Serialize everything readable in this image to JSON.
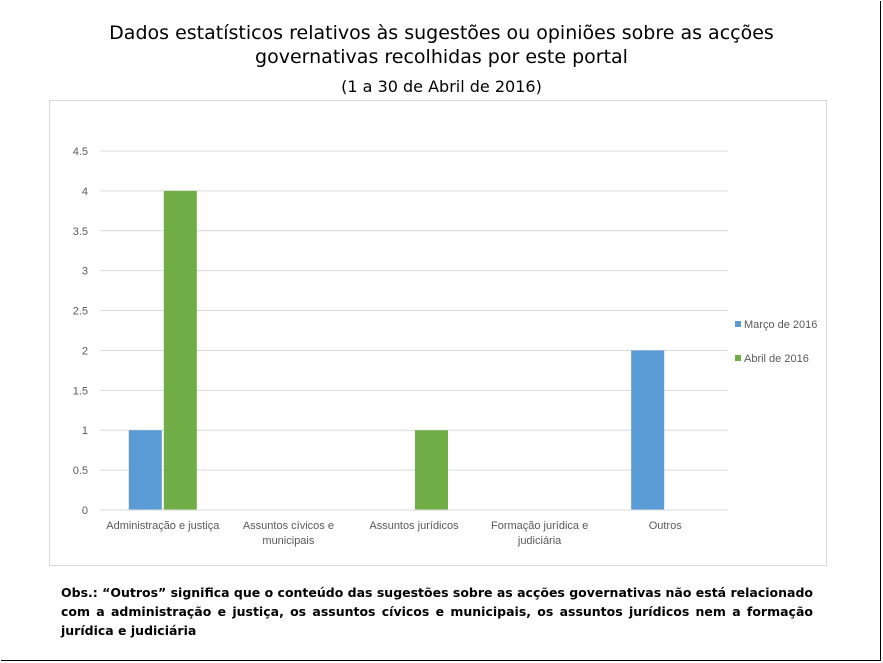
{
  "header": {
    "title_line1": "Dados estatísticos relativos às sugestões ou opiniões sobre as acções",
    "title_line2": "governativas recolhidas por este portal",
    "subtitle": "(1 a 30 de Abril de 2016)"
  },
  "chart_data": {
    "type": "bar",
    "categories": [
      [
        "Administração e justiça"
      ],
      [
        "Assuntos cívicos e",
        "municipais"
      ],
      [
        "Assuntos jurídicos"
      ],
      [
        "Formação jurídica e",
        "judiciária"
      ],
      [
        "Outros"
      ]
    ],
    "series": [
      {
        "name": "Março de 2016",
        "color": "#5B9BD5",
        "values": [
          1,
          0,
          0,
          0,
          2
        ]
      },
      {
        "name": "Abril de 2016",
        "color": "#70AD47",
        "values": [
          4,
          0,
          1,
          0,
          0
        ]
      }
    ],
    "yticks": [
      "0",
      "0.5",
      "1",
      "1.5",
      "2",
      "2.5",
      "3",
      "3.5",
      "4",
      "4.5"
    ],
    "ylim": [
      0,
      4.5
    ],
    "grid": true,
    "legend_position": "right"
  },
  "note": "Obs.: “Outros” significa que o conteúdo das sugestões sobre as acções governativas não está relacionado com a administração e justiça, os assuntos cívicos e municipais, os assuntos jurídicos nem a formação jurídica e judiciária"
}
